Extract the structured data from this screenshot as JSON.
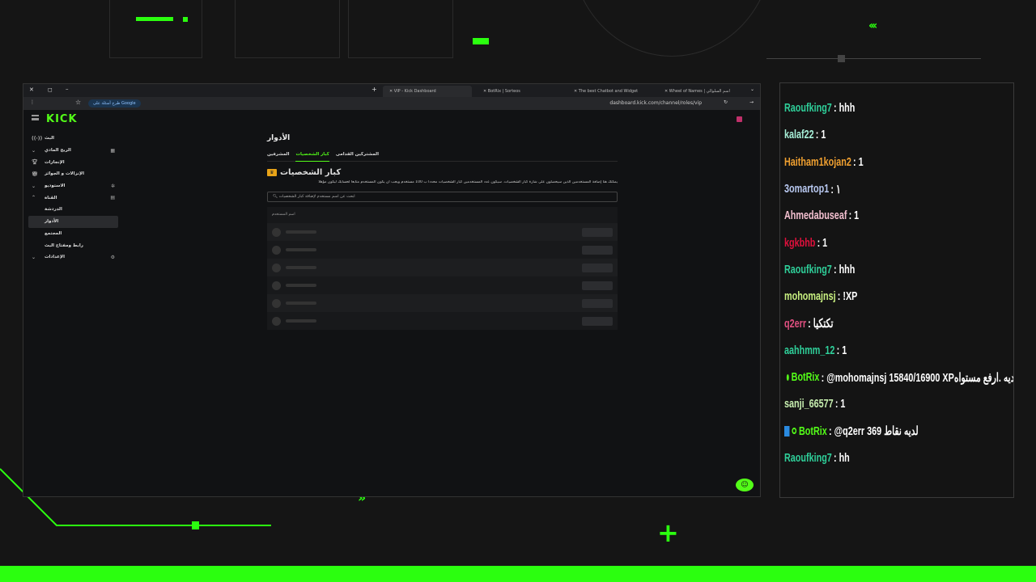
{
  "browser": {
    "tabs": [
      {
        "label": "VIP - Kick Dashboard",
        "active": true
      },
      {
        "label": "BotRix | Sorteos"
      },
      {
        "label": "The best Chatbot and Widget"
      },
      {
        "label": "Wheel of Names | اسم السلوالي"
      }
    ],
    "search_chip": "طرح أسئلة على Google",
    "url": "dashboard.kick.com/channel/roles/vip"
  },
  "app": {
    "logo": "KICK",
    "sidebar": [
      {
        "label": "البث",
        "icon": "broadcast-icon"
      },
      {
        "label": "الربح المادي",
        "icon": "chevron-down-icon",
        "right_icon": "chart-icon"
      },
      {
        "label": "الإنجازات",
        "icon": "trophy-icon"
      },
      {
        "label": "الإنزالات و الجوائز",
        "icon": "gift-icon"
      },
      {
        "label": "الاستوديو",
        "icon": "chevron-down-icon",
        "right_icon": "studio-icon"
      },
      {
        "label": "القناة",
        "icon": "chevron-up-icon",
        "right_icon": "channel-icon"
      },
      {
        "label": "الدردشة",
        "sub": true
      },
      {
        "label": "الأدوار",
        "sub": true,
        "selected": true
      },
      {
        "label": "المجتمع",
        "sub": true
      },
      {
        "label": "رابط ومفتاح البث",
        "sub": true
      },
      {
        "label": "الإعدادات",
        "icon": "chevron-down-icon",
        "right_icon": "gear-icon"
      }
    ],
    "main": {
      "title": "الأدوار",
      "tabs": [
        {
          "label": "المشرفين"
        },
        {
          "label": "كبار الشخصيات",
          "active": true
        },
        {
          "label": "المشتركين القدامى"
        }
      ],
      "heading": "كبار الشخصيات",
      "description": "يمكنك هنا إضافة المستخدمين الذين سيحصلون على شارة كبار الشخصيات. سيكون عدد المستخدمين كبار الشخصيات محدداً ب 100 مستخدم ويجب أن يكون المستخدم متابعاً لحسابك ليكون مؤهلاً",
      "search_placeholder": "ابحث عن اسم مستخدم لإضافة كبار الشخصيات",
      "column_header": "اسم المستخدم"
    },
    "accent": "#53fc18"
  },
  "chat": [
    {
      "user": "Raoufking7",
      "color": "#2fd09a",
      "text": ": hhh"
    },
    {
      "user": "kalaf22",
      "color": "#a7f0d8",
      "text": ": 1"
    },
    {
      "user": "Haitham1kojan2",
      "color": "#f0a030",
      "text": ": 1"
    },
    {
      "user": "3omartop1",
      "color": "#b8c8f0",
      "text": ": ١"
    },
    {
      "user": "Ahmedabuseaf",
      "color": "#f4c0d0",
      "text": ": 1"
    },
    {
      "user": "kgkbhb",
      "color": "#e0103c",
      "text": ": 1"
    },
    {
      "user": "Raoufking7",
      "color": "#2fd09a",
      "text": ": hhh"
    },
    {
      "user": "mohomajnsj",
      "color": "#c8f080",
      "text": ": !XP"
    },
    {
      "user": "q2err",
      "color": "#e05080",
      "text": ": تكتكيا"
    },
    {
      "user": "aahhmm_12",
      "color": "#2fd09a",
      "text": ": 1"
    },
    {
      "user": "BotRix",
      "color": "#53fc18",
      "bot": true,
      "text": ": @mohomajnsj 15840/16900 XPلديه .ارفع مستواه"
    },
    {
      "user": "sanji_66577",
      "color": "#c8f0b0",
      "text": ": 1"
    },
    {
      "user": "BotRix",
      "color": "#53fc18",
      "bot": true,
      "text": ": @q2err 369 لديه نقاط"
    },
    {
      "user": "Raoufking7",
      "color": "#2fd09a",
      "text": ": hh"
    }
  ]
}
